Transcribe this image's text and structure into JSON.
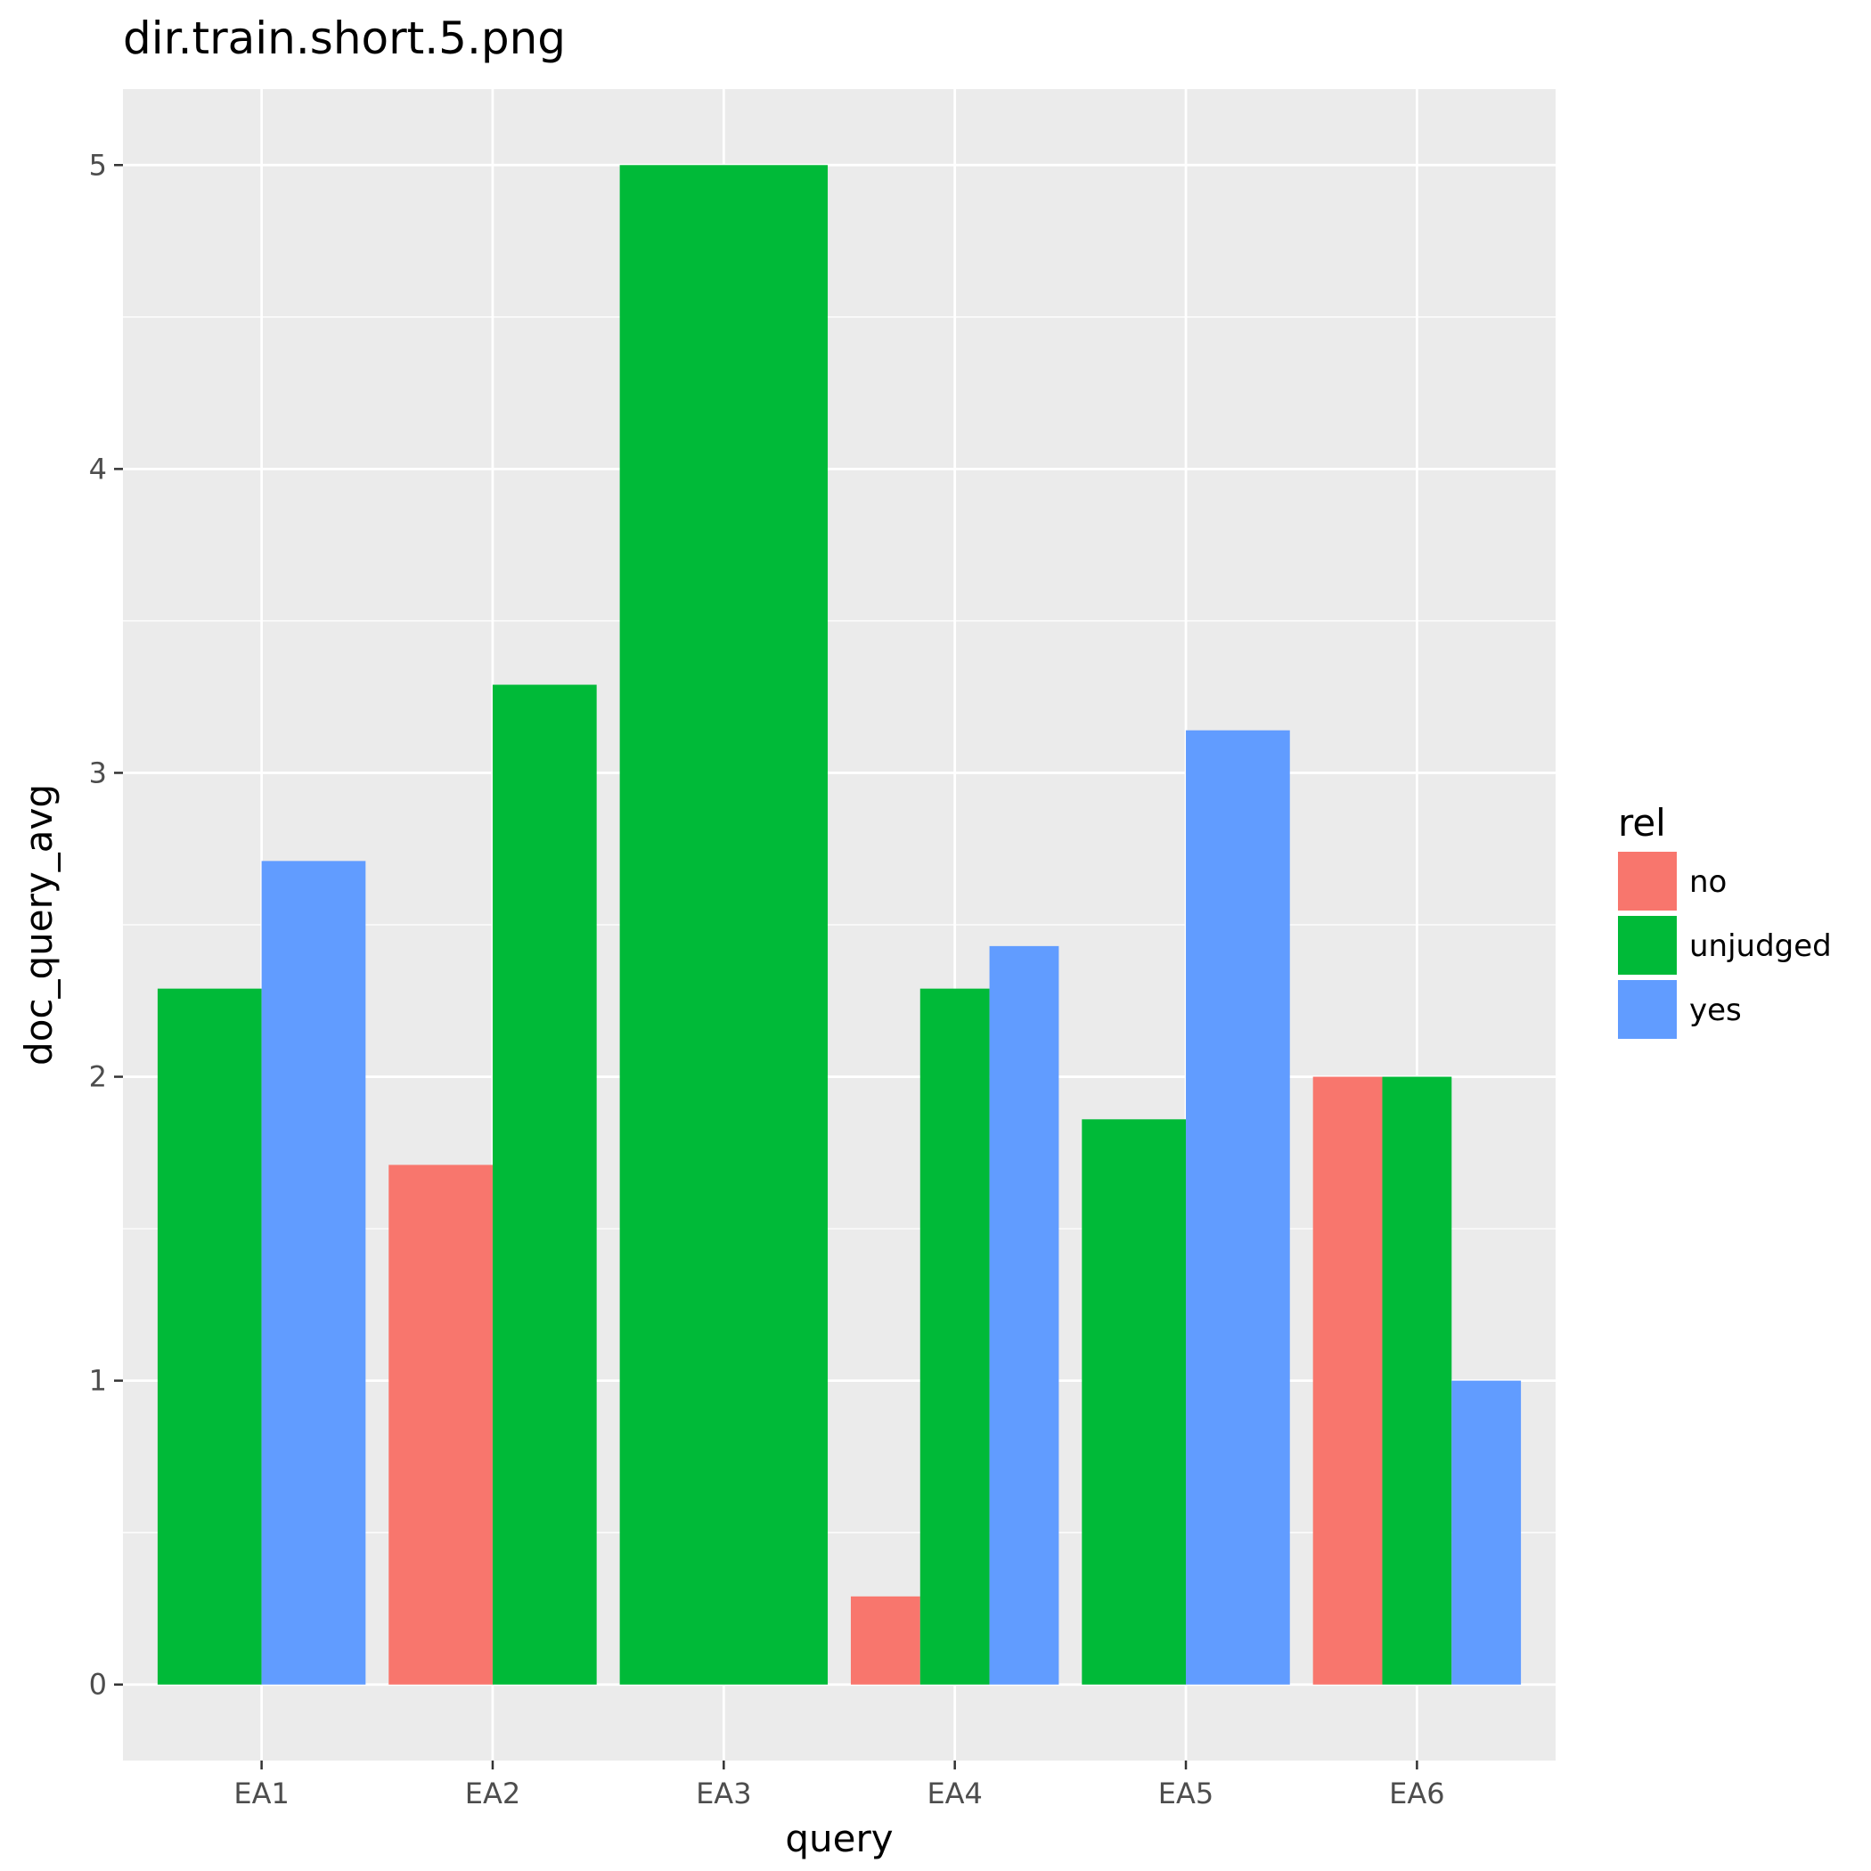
{
  "chart_data": {
    "type": "bar",
    "title": "dir.train.short.5.png",
    "xlabel": "query",
    "ylabel": "doc_query_avg",
    "categories": [
      "EA1",
      "EA2",
      "EA3",
      "EA4",
      "EA5",
      "EA6"
    ],
    "yticks": [
      "0",
      "1",
      "2",
      "3",
      "4",
      "5"
    ],
    "ylim": [
      -0.25,
      5.25
    ],
    "grid": true,
    "legend_title": "rel",
    "legend_position": "right",
    "series": [
      {
        "name": "no",
        "color": "#F8766D",
        "values": [
          null,
          1.71,
          null,
          0.29,
          null,
          2.0
        ]
      },
      {
        "name": "unjudged",
        "color": "#00BA38",
        "values": [
          2.29,
          3.29,
          5.0,
          2.29,
          1.86,
          2.0
        ]
      },
      {
        "name": "yes",
        "color": "#619CFF",
        "values": [
          2.71,
          null,
          null,
          2.43,
          3.14,
          1.0
        ]
      }
    ]
  }
}
